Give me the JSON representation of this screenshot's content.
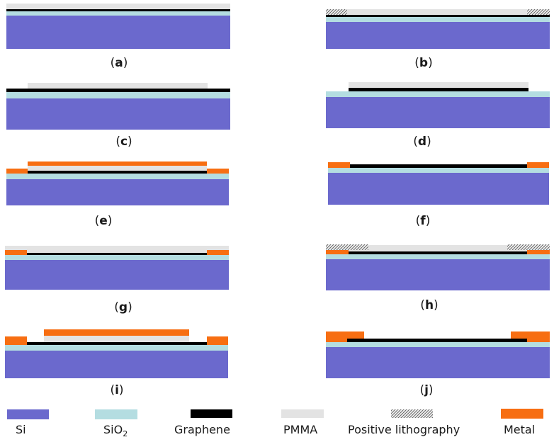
{
  "colors": {
    "si": "#6b69cd",
    "sio2": "#b4dde1",
    "graphene": "#000000",
    "pmma": "#e3e3e3",
    "metal": "#f76e12"
  },
  "panels": [
    {
      "id": "a",
      "caption": "a"
    },
    {
      "id": "b",
      "caption": "b"
    },
    {
      "id": "c",
      "caption": "c"
    },
    {
      "id": "d",
      "caption": "d"
    },
    {
      "id": "e",
      "caption": "e"
    },
    {
      "id": "f",
      "caption": "f"
    },
    {
      "id": "g",
      "caption": "g"
    },
    {
      "id": "h",
      "caption": "h"
    },
    {
      "id": "i",
      "caption": "i"
    },
    {
      "id": "j",
      "caption": "j"
    }
  ],
  "legend": {
    "si": "Si",
    "sio2_main": "SiO",
    "sio2_sub": "2",
    "graphene": "Graphene",
    "pmma": "PMMA",
    "lithography": "Positive lithography",
    "metal": "Metal"
  }
}
